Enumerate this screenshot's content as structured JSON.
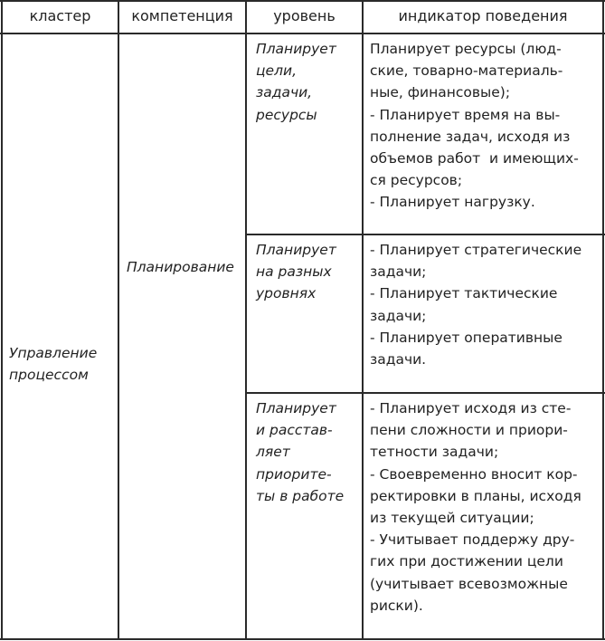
{
  "header": {
    "cluster": "кластер",
    "competency": "компетенция",
    "level": "уровень",
    "indicator": "индикатор поведения"
  },
  "cluster": [
    "Управление",
    "процессом"
  ],
  "competency": [
    "Планирование"
  ],
  "rows": [
    {
      "level": [
        "Планирует",
        "цели,",
        "задачи,",
        "ресурсы"
      ],
      "indicator": [
        "Планирует ресурсы (люд-",
        "ские, товарно-материаль-",
        "ные, финансовые);",
        "- Планирует время на вы-",
        "полнение задач, исходя из",
        "объемов работ  и имеющих-",
        "ся ресурсов;",
        "- Планирует нагрузку."
      ]
    },
    {
      "level": [
        "Планирует",
        "на разных",
        "уровнях"
      ],
      "indicator": [
        "- Планирует стратегические",
        "задачи;",
        "- Планирует тактические",
        "задачи;",
        "- Планирует оперативные",
        "задачи."
      ]
    },
    {
      "level": [
        "Планирует",
        "и расстав-",
        "ляет",
        "приорите-",
        "ты в работе"
      ],
      "indicator": [
        "- Планирует исходя из сте-",
        "пени сложности и приори-",
        "тетности задачи;",
        "- Своевременно вносит кор-",
        "ректировки в планы, исходя",
        "из текущей ситуации;",
        "- Учитывает поддержу дру-",
        "гих при достижении цели",
        "(учитывает всевозможные",
        "риски)."
      ]
    }
  ]
}
